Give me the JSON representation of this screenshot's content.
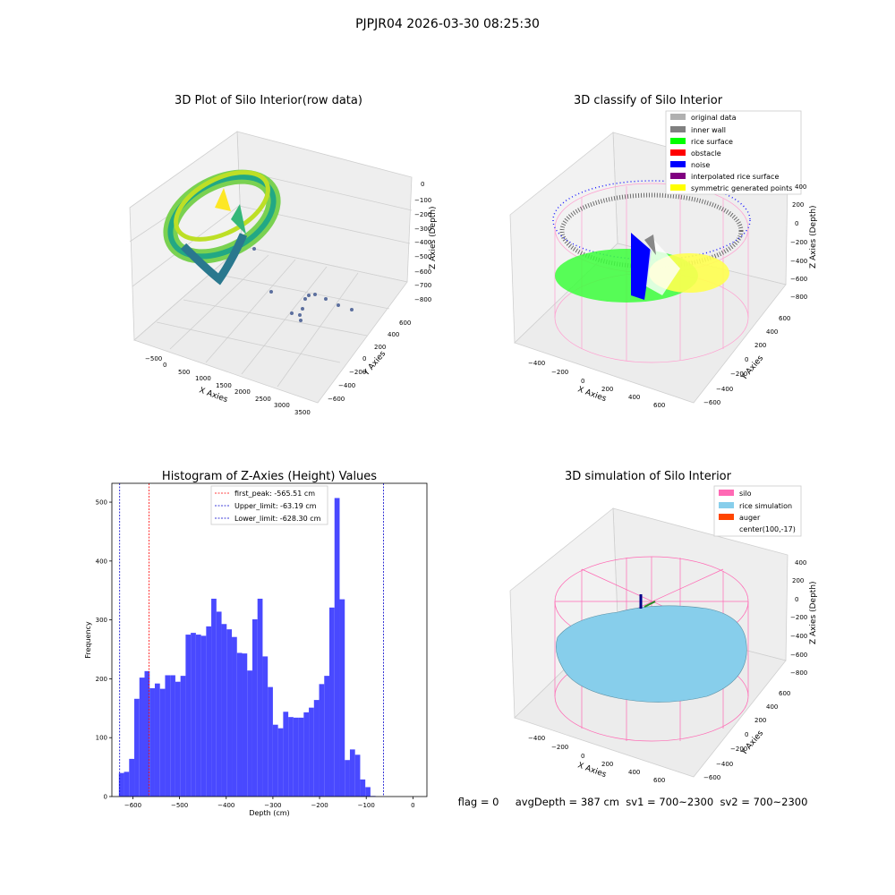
{
  "suptitle": "PJPJR04 2026-03-30 08:25:30",
  "status_line": "flag = 0     avgDepth = 387 cm  sv1 = 700~2300  sv2 = 700~2300",
  "chart_data": [
    {
      "type": "scatter3d",
      "title": "3D Plot of Silo Interior(row data)",
      "xlabel": "X Axies",
      "ylabel": "Y Axies",
      "zlabel": "Z Axies (Depth)",
      "x_ticks": [
        "−500",
        "0",
        "500",
        "1000",
        "1500",
        "2000",
        "2500",
        "3000",
        "3500"
      ],
      "y_ticks": [
        "−600",
        "−400",
        "−200",
        "0",
        "200",
        "400",
        "600"
      ],
      "z_ticks": [
        "0",
        "−100",
        "−200",
        "−300",
        "−400",
        "−500",
        "−600",
        "−700",
        "−800"
      ],
      "grid": true,
      "colormap": "viridis"
    },
    {
      "type": "scatter3d",
      "title": "3D classify of Silo Interior",
      "xlabel": "X Axies",
      "ylabel": "Y Axies",
      "zlabel": "Z Axies (Depth)",
      "x_ticks": [
        "−400",
        "−200",
        "0",
        "200",
        "400",
        "600"
      ],
      "y_ticks": [
        "−600",
        "−400",
        "−200",
        "0",
        "200",
        "400",
        "600"
      ],
      "z_ticks": [
        "400",
        "200",
        "0",
        "−200",
        "−400",
        "−600",
        "−800"
      ],
      "grid": true,
      "legend_position": "upper-right",
      "legend": [
        {
          "label": "original data",
          "color": "#b0b0b0"
        },
        {
          "label": "inner wall",
          "color": "#808080"
        },
        {
          "label": "rice surface",
          "color": "#00ff00"
        },
        {
          "label": "obstacle",
          "color": "#ff0000"
        },
        {
          "label": "noise",
          "color": "#0000ff"
        },
        {
          "label": "interpolated rice surface",
          "color": "#800080"
        },
        {
          "label": "symmetric generated points",
          "color": "#ffff00"
        }
      ]
    },
    {
      "type": "bar",
      "title": "Histogram of Z-Axies (Height) Values",
      "xlabel": "Depth (cm)",
      "ylabel": "Frequency",
      "xlim": [
        -645,
        30
      ],
      "ylim": [
        0,
        532
      ],
      "x_ticks": [
        -600,
        -500,
        -400,
        -300,
        -200,
        -100,
        0
      ],
      "y_ticks": [
        0,
        100,
        200,
        300,
        400,
        500
      ],
      "bin_width": 11.0,
      "bin_start": -630,
      "bar_color": "#4949ff",
      "values": [
        40,
        42,
        64,
        166,
        202,
        213,
        184,
        192,
        183,
        206,
        206,
        195,
        205,
        275,
        278,
        275,
        273,
        289,
        336,
        314,
        293,
        284,
        271,
        244,
        243,
        214,
        301,
        336,
        238,
        186,
        122,
        116,
        144,
        135,
        134,
        134,
        143,
        151,
        164,
        191,
        205,
        321,
        507,
        335,
        62,
        80,
        71,
        29,
        16,
        1
      ],
      "vlines": [
        {
          "label": "first_peak: -565.51 cm",
          "x": -565.51,
          "color": "#ff0000"
        },
        {
          "label": "Upper_limit: -63.19 cm",
          "x": -63.19,
          "color": "#0000cc"
        },
        {
          "label": "Lower_limit: -628.30 cm",
          "x": -628.3,
          "color": "#0000cc"
        }
      ],
      "legend_position": "top-center"
    },
    {
      "type": "surface3d",
      "title": "3D simulation of Silo Interior",
      "xlabel": "X Axies",
      "ylabel": "Y Axies",
      "zlabel": "Z Axies (Depth)",
      "x_ticks": [
        "−400",
        "−200",
        "0",
        "200",
        "400",
        "600"
      ],
      "y_ticks": [
        "−600",
        "−400",
        "−200",
        "0",
        "200",
        "400",
        "600"
      ],
      "z_ticks": [
        "400",
        "200",
        "0",
        "−200",
        "−400",
        "−600",
        "−800"
      ],
      "grid": true,
      "legend_position": "upper-right",
      "legend": [
        {
          "label": "silo",
          "color": "#ff69b4"
        },
        {
          "label": "rice simulation",
          "color": "#87ceeb"
        },
        {
          "label": "auger",
          "color": "#ff4500"
        },
        {
          "label": "center(100,-17)",
          "color": "none"
        }
      ]
    }
  ]
}
